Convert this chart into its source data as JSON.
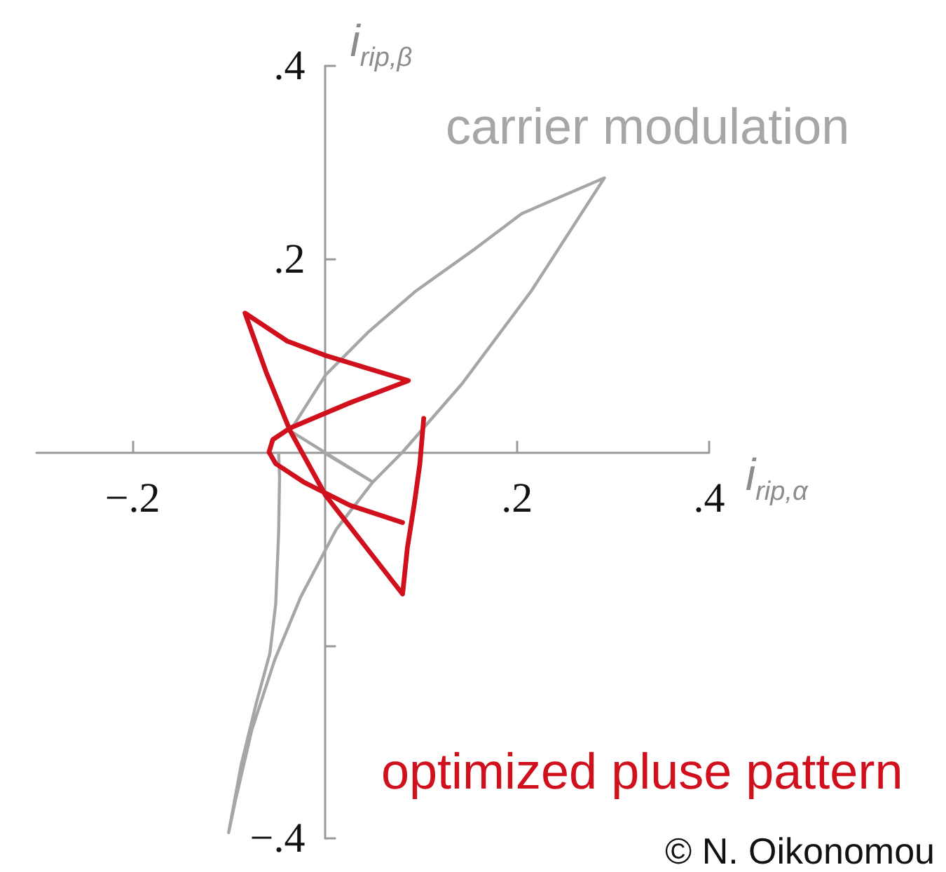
{
  "chart_data": {
    "type": "line",
    "xlabel": "i$_{rip,α}$",
    "ylabel": "i$_{rip,β}$",
    "xlim": [
      -0.3,
      0.4
    ],
    "ylim": [
      -0.4,
      0.4
    ],
    "xticks": [
      {
        "value": -0.2,
        "label": "−.2"
      },
      {
        "value": 0.2,
        "label": ".2"
      },
      {
        "value": 0.4,
        "label": ".4"
      }
    ],
    "yticks": [
      {
        "value": -0.4,
        "label": "−.4"
      },
      {
        "value": -0.2,
        "label": null
      },
      {
        "value": 0.2,
        "label": ".2"
      },
      {
        "value": 0.4,
        "label": ".4"
      }
    ],
    "grid": false,
    "marker": "none",
    "line_style": "solid",
    "annotations": [
      "© N. Oikonomou"
    ],
    "series": [
      {
        "name": "carrier modulation",
        "color": "#a6a6a6",
        "x": [
          -0.048,
          -0.047,
          -0.048,
          -0.051,
          -0.057,
          -0.071,
          -0.087,
          -0.1,
          -0.093,
          -0.076,
          -0.052,
          -0.025,
          0.012,
          0.05,
          0.081,
          0.143,
          0.215,
          0.291,
          0.205,
          0.157,
          0.095,
          0.045,
          0.001,
          -0.036,
          0.05,
          0.0
        ],
        "values": [
          -0.001,
          -0.026,
          -0.084,
          -0.157,
          -0.208,
          -0.259,
          -0.324,
          -0.394,
          -0.361,
          -0.288,
          -0.215,
          -0.15,
          -0.08,
          -0.031,
          0.0,
          0.071,
          0.167,
          0.284,
          0.247,
          0.211,
          0.167,
          0.124,
          0.08,
          0.022,
          -0.031,
          -0.001
        ]
      },
      {
        "name": "optimized pluse pattern",
        "color": "#d0101c",
        "x": [
          0.103,
          0.099,
          0.093,
          0.086,
          0.081,
          0.041,
          0.001,
          -0.036,
          -0.061,
          -0.083,
          -0.039,
          0.001,
          0.044,
          0.087,
          0.026,
          -0.036,
          -0.054,
          -0.058,
          -0.051,
          -0.022,
          0.026,
          0.081
        ],
        "values": [
          0.035,
          -0.012,
          -0.055,
          -0.099,
          -0.147,
          -0.096,
          -0.045,
          0.022,
          0.083,
          0.144,
          0.115,
          0.1,
          0.087,
          0.074,
          0.051,
          0.025,
          0.013,
          0.0,
          -0.012,
          -0.031,
          -0.055,
          -0.073
        ]
      }
    ]
  }
}
